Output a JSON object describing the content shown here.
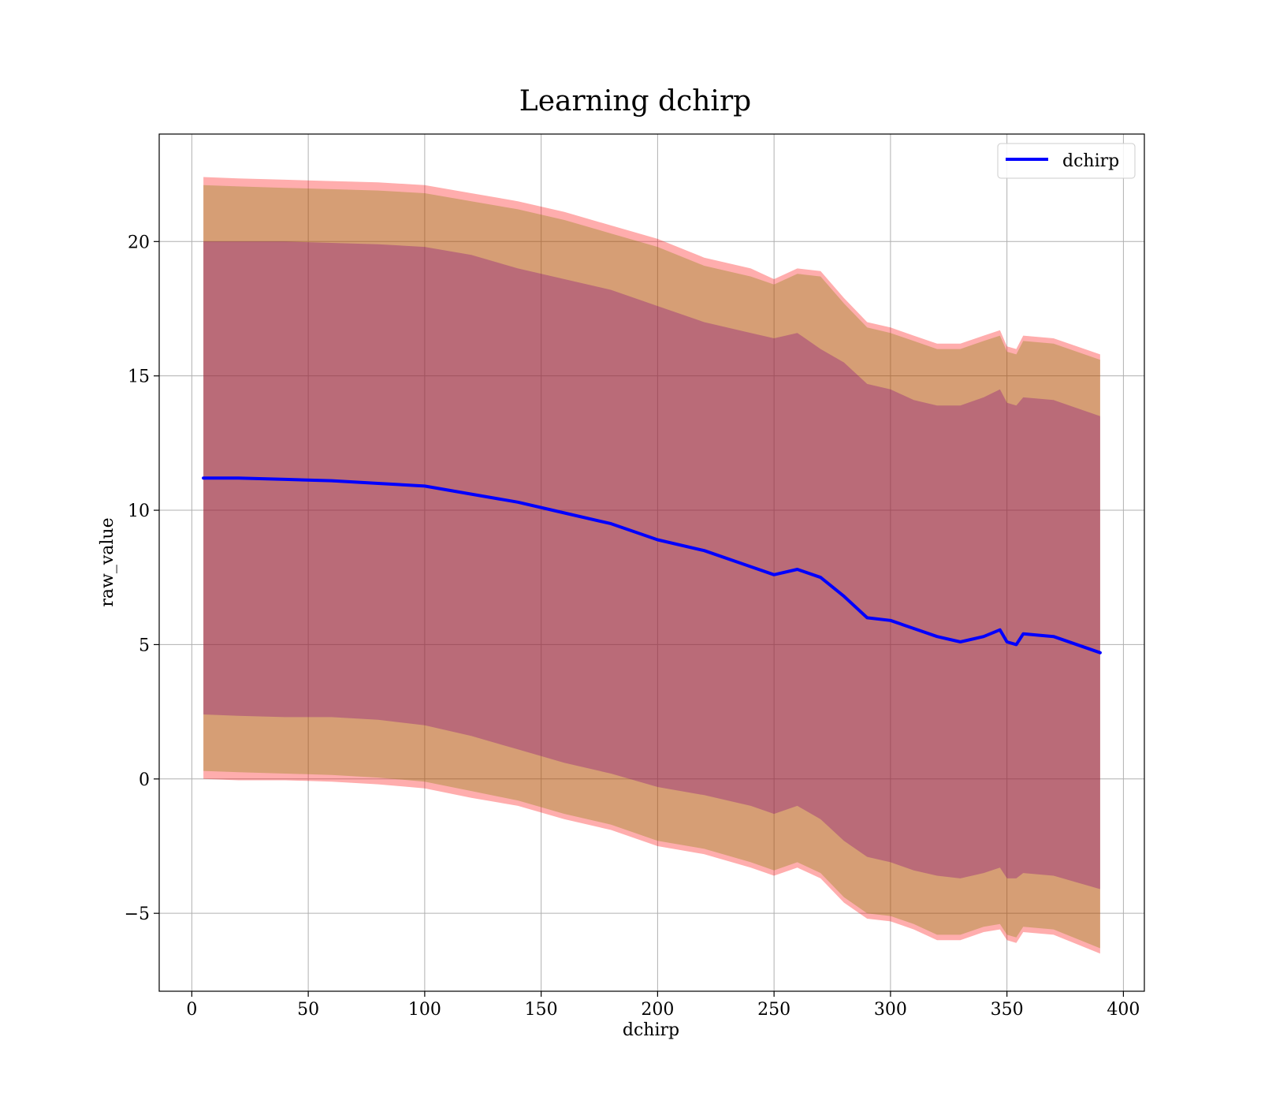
{
  "chart_data": {
    "type": "area",
    "title": "Learning dchirp",
    "xlabel": "dchirp",
    "ylabel": "raw_value",
    "xlim": [
      -14,
      409
    ],
    "ylim": [
      -7.9,
      24.0
    ],
    "xticks": [
      0,
      50,
      100,
      150,
      200,
      250,
      300,
      350,
      400
    ],
    "yticks": [
      -5,
      0,
      5,
      10,
      15,
      20
    ],
    "ytick_labels": [
      "−5",
      "0",
      "5",
      "10",
      "15",
      "20"
    ],
    "grid": true,
    "legend_position": "top-right",
    "x": [
      5,
      20,
      40,
      60,
      80,
      100,
      120,
      140,
      160,
      180,
      200,
      220,
      240,
      250,
      260,
      270,
      280,
      290,
      300,
      310,
      320,
      330,
      340,
      347,
      350,
      354,
      357,
      370,
      390
    ],
    "series": [
      {
        "name": "dchirp",
        "color": "#0000ff",
        "values": [
          11.2,
          11.2,
          11.15,
          11.1,
          11.0,
          10.9,
          10.6,
          10.3,
          9.9,
          9.5,
          8.9,
          8.5,
          7.9,
          7.6,
          7.8,
          7.5,
          6.8,
          6.0,
          5.9,
          5.6,
          5.3,
          5.1,
          5.3,
          5.55,
          5.1,
          5.0,
          5.4,
          5.3,
          4.7
        ]
      }
    ],
    "bands": [
      {
        "fill": "#ff0000",
        "opacity": 0.32,
        "lower": [
          0.0,
          -0.05,
          -0.05,
          -0.1,
          -0.2,
          -0.35,
          -0.7,
          -1.0,
          -1.5,
          -1.9,
          -2.5,
          -2.8,
          -3.3,
          -3.6,
          -3.3,
          -3.7,
          -4.6,
          -5.2,
          -5.3,
          -5.6,
          -6.0,
          -6.0,
          -5.7,
          -5.6,
          -6.0,
          -6.1,
          -5.7,
          -5.8,
          -6.5
        ],
        "upper": [
          22.4,
          22.35,
          22.3,
          22.25,
          22.2,
          22.1,
          21.8,
          21.5,
          21.1,
          20.6,
          20.1,
          19.4,
          19.0,
          18.6,
          19.0,
          18.9,
          17.9,
          17.0,
          16.8,
          16.5,
          16.2,
          16.2,
          16.5,
          16.7,
          16.1,
          16.0,
          16.5,
          16.4,
          15.8
        ]
      },
      {
        "fill": "#808000",
        "opacity": 0.32,
        "lower": [
          0.3,
          0.25,
          0.2,
          0.15,
          0.05,
          -0.1,
          -0.45,
          -0.8,
          -1.3,
          -1.7,
          -2.3,
          -2.6,
          -3.1,
          -3.4,
          -3.1,
          -3.5,
          -4.4,
          -5.0,
          -5.1,
          -5.4,
          -5.8,
          -5.8,
          -5.5,
          -5.4,
          -5.8,
          -5.9,
          -5.5,
          -5.6,
          -6.3
        ],
        "upper": [
          22.1,
          22.05,
          22.0,
          21.95,
          21.9,
          21.8,
          21.5,
          21.2,
          20.8,
          20.3,
          19.8,
          19.1,
          18.7,
          18.4,
          18.8,
          18.7,
          17.7,
          16.8,
          16.6,
          16.3,
          16.0,
          16.0,
          16.3,
          16.5,
          15.9,
          15.8,
          16.3,
          16.2,
          15.6
        ]
      },
      {
        "fill": "#800080",
        "opacity": 0.32,
        "lower": [
          2.4,
          2.35,
          2.3,
          2.3,
          2.2,
          2.0,
          1.6,
          1.1,
          0.6,
          0.2,
          -0.3,
          -0.6,
          -1.0,
          -1.3,
          -1.0,
          -1.5,
          -2.3,
          -2.9,
          -3.1,
          -3.4,
          -3.6,
          -3.7,
          -3.5,
          -3.3,
          -3.7,
          -3.7,
          -3.5,
          -3.6,
          -4.1
        ],
        "upper": [
          20.0,
          20.0,
          20.0,
          19.95,
          19.9,
          19.8,
          19.5,
          19.0,
          18.6,
          18.2,
          17.6,
          17.0,
          16.6,
          16.4,
          16.6,
          16.0,
          15.5,
          14.7,
          14.5,
          14.1,
          13.9,
          13.9,
          14.2,
          14.5,
          14.0,
          13.9,
          14.2,
          14.1,
          13.5
        ]
      }
    ]
  }
}
